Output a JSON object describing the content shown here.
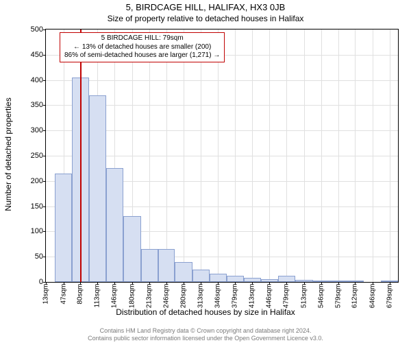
{
  "title": "5, BIRDCAGE HILL, HALIFAX, HX3 0JB",
  "subtitle": "Size of property relative to detached houses in Halifax",
  "ylabel": "Number of detached properties",
  "xlabel": "Distribution of detached houses by size in Halifax",
  "footer_line1": "Contains HM Land Registry data © Crown copyright and database right 2024.",
  "footer_line2": "Contains public sector information licensed under the Open Government Licence v3.0.",
  "chart": {
    "type": "histogram",
    "background_color": "#ffffff",
    "grid_color": "#e0e0e0",
    "border_color": "#000000",
    "bar_fill": "#d6dff2",
    "bar_border": "#8aa0d0",
    "marker_color": "#c00000",
    "annot_border": "#c00000",
    "ylim": [
      0,
      500
    ],
    "ytick_step": 50,
    "yticks": [
      0,
      50,
      100,
      150,
      200,
      250,
      300,
      350,
      400,
      450,
      500
    ],
    "xticks": [
      "13sqm",
      "47sqm",
      "80sqm",
      "113sqm",
      "146sqm",
      "180sqm",
      "213sqm",
      "246sqm",
      "280sqm",
      "313sqm",
      "346sqm",
      "379sqm",
      "413sqm",
      "446sqm",
      "479sqm",
      "513sqm",
      "546sqm",
      "579sqm",
      "612sqm",
      "646sqm",
      "679sqm"
    ],
    "x_min": 13,
    "x_max": 695,
    "bars": [
      {
        "x0": 30,
        "x1": 63,
        "y": 215
      },
      {
        "x0": 63,
        "x1": 97,
        "y": 405
      },
      {
        "x0": 97,
        "x1": 130,
        "y": 370
      },
      {
        "x0": 130,
        "x1": 163,
        "y": 225
      },
      {
        "x0": 163,
        "x1": 197,
        "y": 130
      },
      {
        "x0": 197,
        "x1": 230,
        "y": 65
      },
      {
        "x0": 230,
        "x1": 263,
        "y": 65
      },
      {
        "x0": 263,
        "x1": 297,
        "y": 40
      },
      {
        "x0": 297,
        "x1": 330,
        "y": 25
      },
      {
        "x0": 330,
        "x1": 363,
        "y": 16
      },
      {
        "x0": 363,
        "x1": 396,
        "y": 12
      },
      {
        "x0": 396,
        "x1": 430,
        "y": 8
      },
      {
        "x0": 430,
        "x1": 463,
        "y": 6
      },
      {
        "x0": 463,
        "x1": 496,
        "y": 12
      },
      {
        "x0": 496,
        "x1": 530,
        "y": 4
      },
      {
        "x0": 530,
        "x1": 563,
        "y": 3
      },
      {
        "x0": 563,
        "x1": 596,
        "y": 2
      },
      {
        "x0": 596,
        "x1": 629,
        "y": 3
      },
      {
        "x0": 629,
        "x1": 662,
        "y": 0
      },
      {
        "x0": 662,
        "x1": 695,
        "y": 2
      }
    ],
    "marker_x": 79,
    "font_family": "Arial",
    "title_fontsize": 13,
    "subtitle_fontsize": 12,
    "axis_label_fontsize": 12,
    "tick_fontsize": 11,
    "xtick_fontsize": 10,
    "annot_fontsize": 10
  },
  "annotation": {
    "line1": "5 BIRDCAGE HILL: 79sqm",
    "line2": "← 13% of detached houses are smaller (200)",
    "line3": "86% of semi-detached houses are larger (1,271) →"
  }
}
